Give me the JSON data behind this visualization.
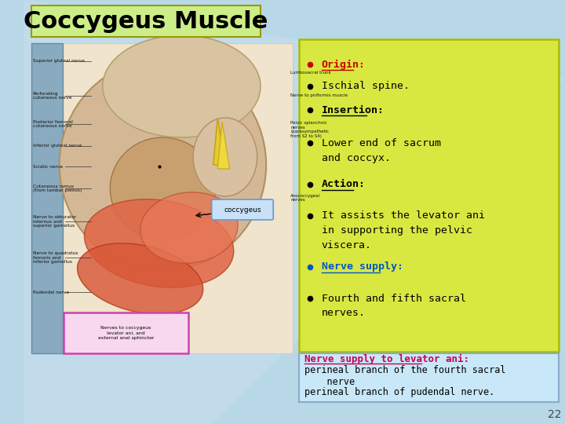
{
  "title": "Coccygeus Muscle",
  "title_bg": "#ccee88",
  "title_color": "#000000",
  "title_fontsize": 22,
  "slide_bg": "#b8d8e8",
  "right_box_bg": "#d8e840",
  "right_box_border": "#aabb00",
  "bullet_items": [
    {
      "text": "Origin:",
      "bold": true,
      "underline": true,
      "color": "#cc0000"
    },
    {
      "text": "Ischial spine.",
      "bold": false,
      "underline": false,
      "color": "#000000"
    },
    {
      "text": "Insertion:",
      "bold": true,
      "underline": true,
      "color": "#000000"
    },
    {
      "text": "Lower end of sacrum\nand coccyx.",
      "bold": false,
      "underline": false,
      "color": "#000000"
    },
    {
      "text": "Action:",
      "bold": true,
      "underline": true,
      "color": "#000000"
    },
    {
      "text": "It assists the levator ani\nin supporting the pelvic\nviscera.",
      "bold": false,
      "underline": false,
      "color": "#000000"
    },
    {
      "text": "Nerve supply:",
      "bold": true,
      "underline": true,
      "color": "#0055cc"
    },
    {
      "text": "Fourth and fifth sacral\nnerves.",
      "bold": false,
      "underline": false,
      "color": "#000000"
    }
  ],
  "bottom_box_bg": "#c8e8f8",
  "bottom_box_border": "#88aacc",
  "bottom_title": "Nerve supply to levator ani:",
  "bottom_title_color": "#cc0055",
  "bottom_lines": [
    "perineal branch of the fourth sacral",
    "    nerve",
    "perineal branch of pudendal nerve."
  ],
  "bottom_text_color": "#000000",
  "page_number": "22",
  "label_coccygeus_bg": "#c8e0f8",
  "label_coccygeus_border": "#6699cc",
  "label_coccygeus_text": "coccygeus",
  "image_labels_left": [
    "Superior gluteal nerve",
    "Perforating\ncutaneous nerve",
    "Posterior femoral\ncutaneous nerve",
    "Inferior gluteal nerve",
    "Sciatic nerve",
    "Cutaneous ramus\n(from lumbar plexus)",
    "Nerve to obturator\ninternus and\nsuperior gamellus",
    "Nerve to quadratus\nfemoris and\ninferior gamellus",
    "Pudendal nerve"
  ],
  "image_labels_right": [
    "Lumbosacral trunk",
    "Nerve to piriformis muscle",
    "Pelvic splanchnic\nnerves\n(parasympathetic\nfrom S2 to S4)",
    "Anococcygeal\nnerves"
  ],
  "pink_box_text": "Nerves to coccygeus\nlevator ani, and\nexternal anal sphincter"
}
